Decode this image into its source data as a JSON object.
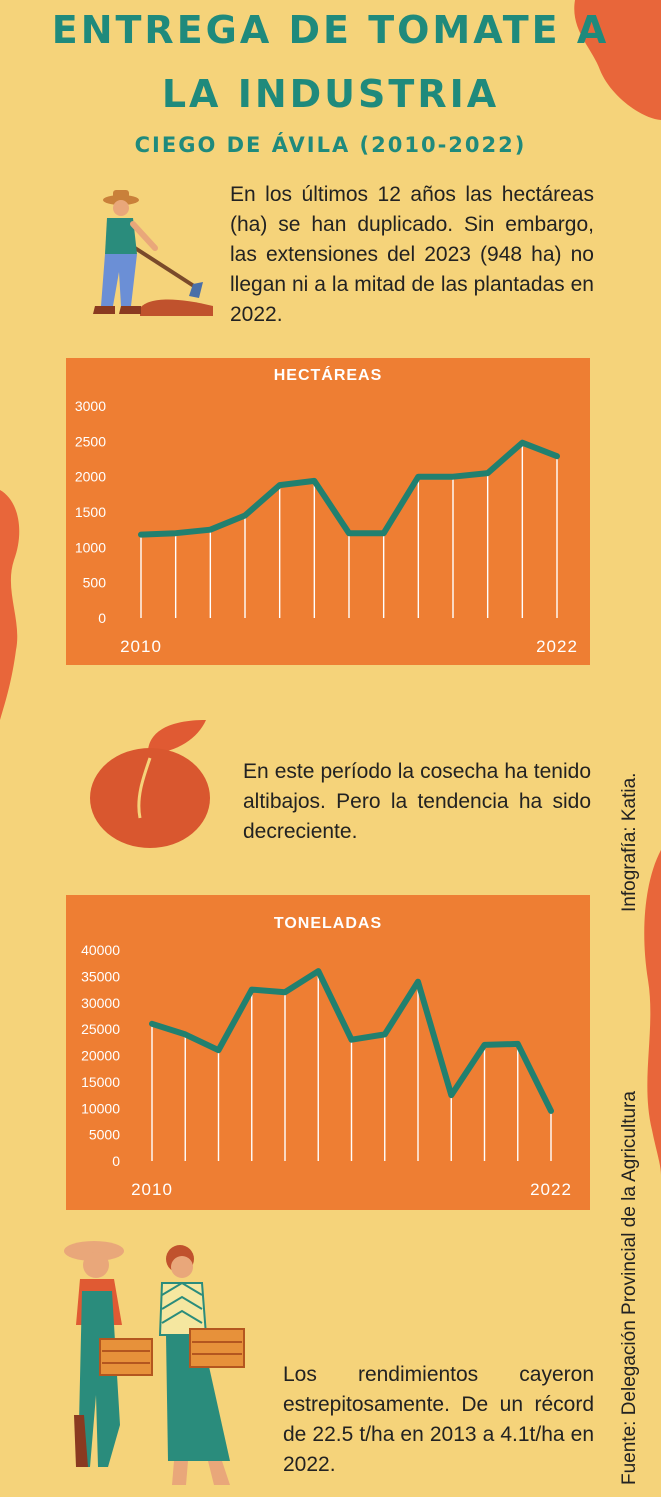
{
  "title_line1": "Entrega de tomate a",
  "title_line2": "la industria",
  "subtitle": "Ciego de Ávila (2010-2022)",
  "paragraph_1": "En los últimos 12 años las hectáreas (ha) se han duplicado. Sin embargo, las extensiones del 2023 (948 ha) no llegan ni a la mitad de las plantadas en 2022.",
  "paragraph_2": "En este período la cosecha ha tenido altibajos. Pero la tendencia ha sido decreciente.",
  "paragraph_3": "Los rendimientos cayeron estrepitosamente. De un récord de 22.5 t/ha en 2013 a 4.1t/ha en 2022.",
  "credit_source": "Fuente: Delegación Provincial de la Agricultura",
  "credit_infographic": "Infografía: Katia.",
  "colors": {
    "background": "#f5d37a",
    "panel": "#ee7e33",
    "line": "#21806f",
    "title": "#1f8a7c",
    "blob": "#e8663a"
  },
  "chart_data": [
    {
      "type": "line",
      "title": "HECTÁREAS",
      "x_start_label": "2010",
      "x_end_label": "2022",
      "y_ticks": [
        0,
        500,
        1000,
        1500,
        2000,
        2500,
        3000
      ],
      "ylim": [
        0,
        3000
      ],
      "grid": false,
      "drop_lines": true,
      "values": [
        1180,
        1200,
        1250,
        1450,
        1880,
        1940,
        1200,
        1200,
        2000,
        2000,
        2050,
        2480,
        2290
      ]
    },
    {
      "type": "line",
      "title": "TONELADAS",
      "x_start_label": "2010",
      "x_end_label": "2022",
      "y_ticks": [
        0,
        5000,
        10000,
        15000,
        20000,
        25000,
        30000,
        35000,
        40000
      ],
      "ylim": [
        0,
        40000
      ],
      "grid": false,
      "drop_lines": true,
      "values": [
        26000,
        24000,
        21000,
        32500,
        32000,
        36000,
        23000,
        24000,
        34000,
        12500,
        22000,
        22200,
        9500
      ]
    }
  ]
}
